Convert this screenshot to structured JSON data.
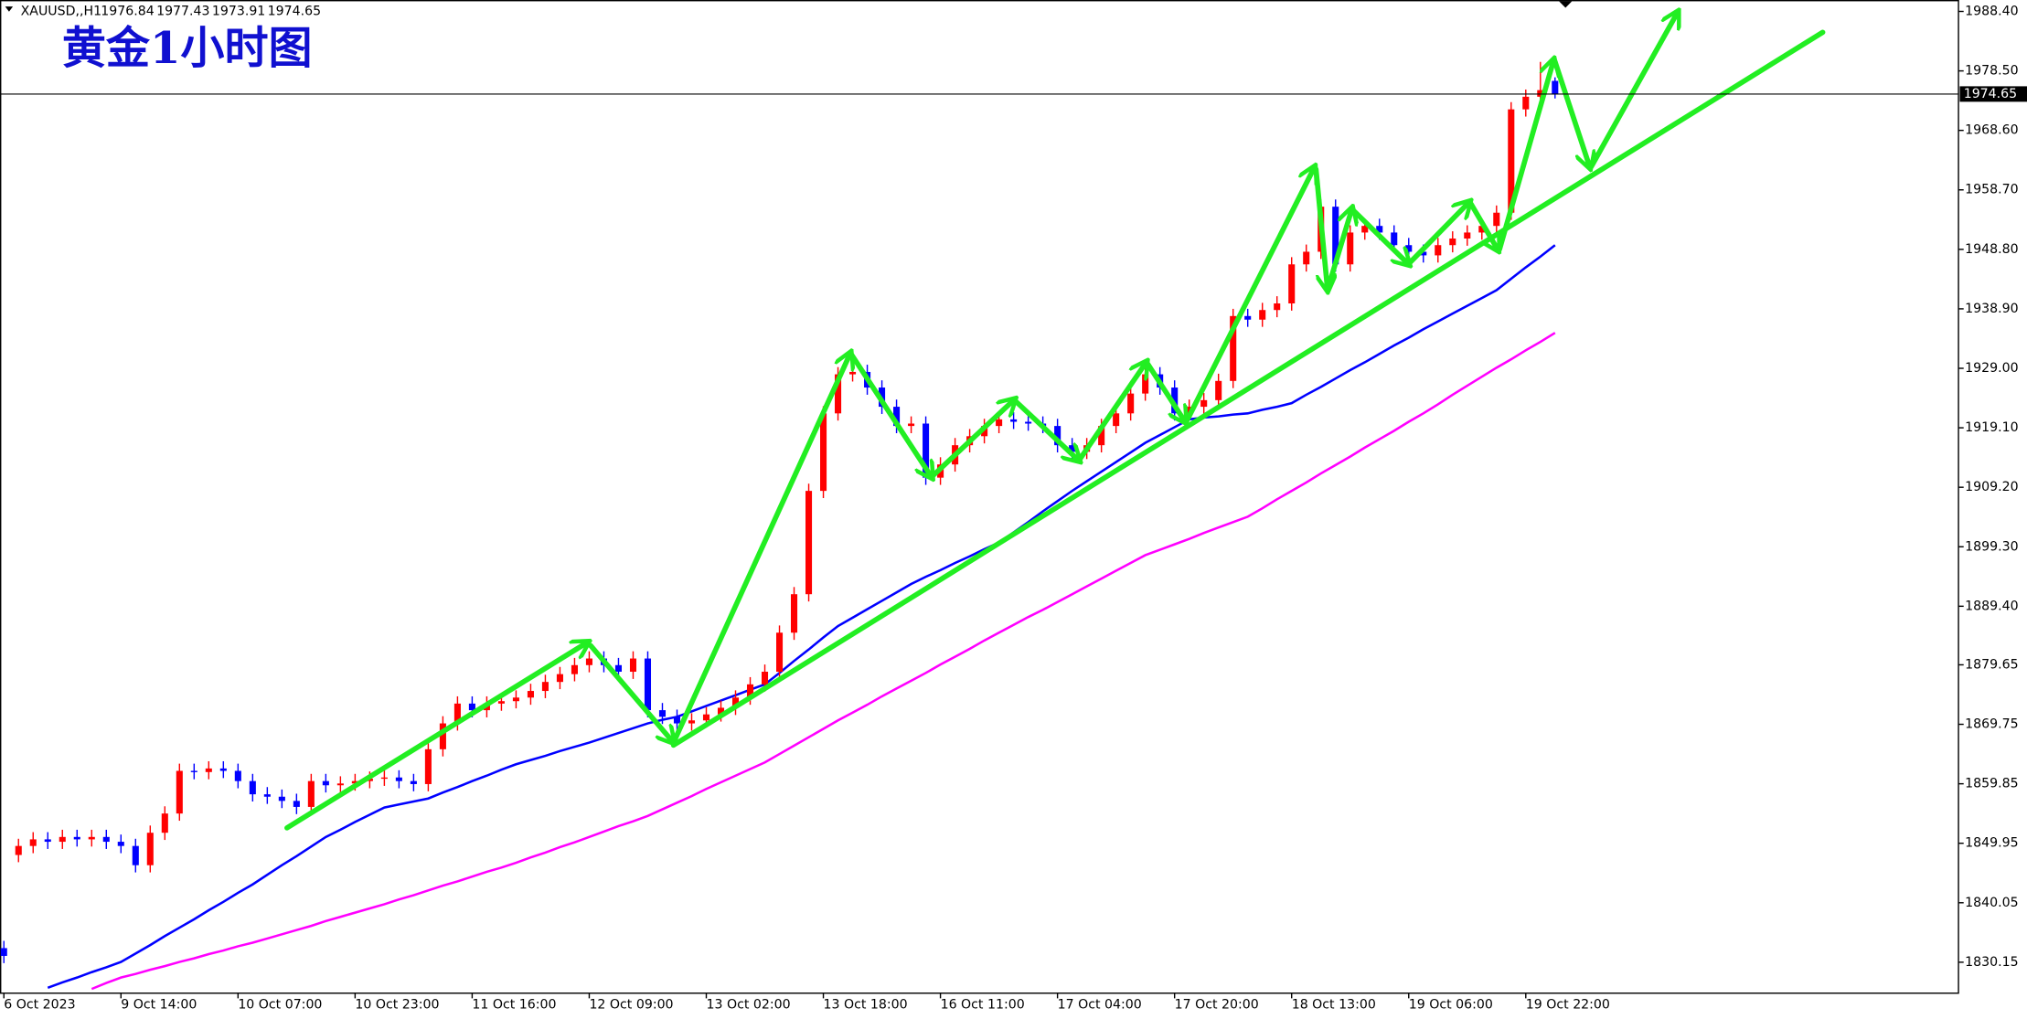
{
  "chart_data": {
    "type": "candlestick",
    "symbol": "XAUUSD,,H1",
    "title": "黄金1小时图",
    "categories": [
      "6 Oct 2023",
      null,
      null,
      null,
      null,
      null,
      null,
      null,
      "9 Oct 14:00",
      null,
      null,
      null,
      null,
      null,
      null,
      null,
      "10 Oct 07:00",
      null,
      null,
      null,
      null,
      null,
      null,
      null,
      "10 Oct 23:00",
      null,
      null,
      null,
      null,
      null,
      null,
      null,
      "11 Oct 16:00",
      null,
      null,
      null,
      null,
      null,
      null,
      null,
      "12 Oct 09:00",
      null,
      null,
      null,
      null,
      null,
      null,
      null,
      "13 Oct 02:00",
      null,
      null,
      null,
      null,
      null,
      null,
      null,
      "13 Oct 18:00",
      null,
      null,
      null,
      null,
      null,
      null,
      null,
      "16 Oct 11:00",
      null,
      null,
      null,
      null,
      null,
      null,
      null,
      "17 Oct 04:00",
      null,
      null,
      null,
      null,
      null,
      null,
      null,
      "17 Oct 20:00",
      null,
      null,
      null,
      null,
      null,
      null,
      null,
      "18 Oct 13:00",
      null,
      null,
      null,
      null,
      null,
      null,
      null,
      "19 Oct 06:00",
      null,
      null,
      null,
      null,
      null,
      null,
      null,
      "19 Oct 22:00",
      null,
      null
    ],
    "open": [
      1832.5,
      1848.0,
      1849.5,
      1850.6,
      1850.2,
      1851.0,
      1850.6,
      1851.0,
      1850.2,
      1849.5,
      1846.3,
      1851.7,
      1854.9,
      1862.0,
      1861.8,
      1862.4,
      1862.0,
      1860.3,
      1858.1,
      1857.7,
      1857.0,
      1856.0,
      1860.3,
      1859.6,
      1859.9,
      1860.3,
      1860.7,
      1860.9,
      1860.3,
      1859.8,
      1865.6,
      1869.9,
      1873.2,
      1872.1,
      1873.2,
      1873.6,
      1874.2,
      1875.3,
      1876.8,
      1878.1,
      1879.6,
      1880.7,
      1879.6,
      1878.5,
      1880.7,
      1872.1,
      1871.0,
      1869.9,
      1870.4,
      1871.4,
      1872.5,
      1874.2,
      1876.4,
      1878.5,
      1885.0,
      1891.4,
      1908.6,
      1921.5,
      1928.0,
      1928.4,
      1925.8,
      1922.6,
      1919.4,
      1919.8,
      1910.8,
      1913.0,
      1916.2,
      1917.7,
      1919.4,
      1920.5,
      1920.1,
      1919.8,
      1919.4,
      1916.2,
      1915.1,
      1916.2,
      1919.4,
      1921.5,
      1924.8,
      1928.0,
      1925.8,
      1921.5,
      1922.6,
      1923.7,
      1926.9,
      1937.7,
      1937.1,
      1938.7,
      1939.8,
      1946.3,
      1948.4,
      1955.9,
      1946.3,
      1951.6,
      1952.7,
      1951.6,
      1949.5,
      1948.4,
      1947.8,
      1949.5,
      1950.6,
      1951.6,
      1952.7,
      1954.9,
      1972.1,
      1974.2,
      1976.84
    ],
    "high": [
      1833.7,
      1850.7,
      1851.8,
      1851.8,
      1852.2,
      1852.2,
      1852.2,
      1852.2,
      1851.4,
      1850.7,
      1852.9,
      1856.1,
      1863.2,
      1863.2,
      1863.6,
      1863.6,
      1863.2,
      1861.5,
      1859.3,
      1858.9,
      1858.2,
      1861.5,
      1861.5,
      1861.1,
      1861.5,
      1861.9,
      1862.1,
      1862.1,
      1861.5,
      1866.8,
      1871.1,
      1874.4,
      1874.4,
      1874.4,
      1874.8,
      1875.4,
      1876.5,
      1878.0,
      1879.3,
      1880.8,
      1881.9,
      1881.9,
      1880.8,
      1881.9,
      1881.9,
      1873.3,
      1872.2,
      1871.6,
      1872.6,
      1873.7,
      1875.4,
      1877.6,
      1879.7,
      1886.2,
      1892.6,
      1909.8,
      1922.7,
      1929.2,
      1929.6,
      1929.6,
      1927.0,
      1923.8,
      1921.0,
      1921.0,
      1914.2,
      1917.4,
      1918.9,
      1920.6,
      1921.7,
      1921.7,
      1921.3,
      1921.0,
      1920.6,
      1917.4,
      1917.4,
      1920.6,
      1922.7,
      1926.0,
      1929.2,
      1929.2,
      1927.0,
      1923.8,
      1924.9,
      1928.1,
      1938.9,
      1938.9,
      1939.9,
      1941.0,
      1947.5,
      1949.6,
      1957.1,
      1957.1,
      1952.8,
      1953.9,
      1953.9,
      1952.8,
      1950.7,
      1949.6,
      1950.7,
      1951.8,
      1952.8,
      1953.9,
      1956.1,
      1973.3,
      1975.4,
      1980.0,
      1977.43
    ],
    "low": [
      1830.0,
      1846.8,
      1848.3,
      1849.0,
      1849.0,
      1849.4,
      1849.4,
      1849.0,
      1848.3,
      1845.1,
      1845.1,
      1850.5,
      1853.7,
      1860.6,
      1860.6,
      1860.8,
      1859.1,
      1856.9,
      1856.5,
      1855.8,
      1854.8,
      1854.8,
      1858.4,
      1858.4,
      1858.7,
      1859.1,
      1859.5,
      1859.1,
      1858.6,
      1858.6,
      1864.4,
      1868.7,
      1870.9,
      1870.9,
      1872.0,
      1872.4,
      1873.0,
      1874.1,
      1875.6,
      1876.9,
      1878.4,
      1878.4,
      1877.3,
      1877.3,
      1870.9,
      1869.8,
      1868.7,
      1868.7,
      1869.2,
      1870.2,
      1871.3,
      1873.0,
      1875.2,
      1877.3,
      1883.8,
      1890.2,
      1907.4,
      1920.3,
      1926.8,
      1924.6,
      1921.4,
      1918.2,
      1918.2,
      1909.6,
      1909.6,
      1911.8,
      1915.0,
      1916.5,
      1918.2,
      1918.9,
      1918.6,
      1918.2,
      1915.0,
      1913.9,
      1913.9,
      1915.0,
      1918.2,
      1920.3,
      1923.6,
      1924.6,
      1920.3,
      1920.3,
      1921.4,
      1922.5,
      1925.7,
      1935.9,
      1935.9,
      1937.5,
      1938.6,
      1945.1,
      1947.2,
      1945.1,
      1945.1,
      1950.4,
      1950.4,
      1948.3,
      1947.2,
      1946.6,
      1946.6,
      1948.3,
      1949.4,
      1950.4,
      1951.5,
      1953.7,
      1970.9,
      1973.0,
      1973.91
    ],
    "close": [
      1831.2,
      1849.5,
      1850.6,
      1850.2,
      1851.0,
      1850.6,
      1851.0,
      1850.2,
      1849.5,
      1846.3,
      1851.7,
      1854.9,
      1862.0,
      1861.8,
      1862.4,
      1862.0,
      1860.3,
      1858.1,
      1857.7,
      1857.0,
      1856.0,
      1860.3,
      1859.6,
      1859.9,
      1860.3,
      1860.7,
      1860.9,
      1860.3,
      1859.8,
      1865.6,
      1869.9,
      1873.2,
      1872.1,
      1873.2,
      1873.6,
      1874.2,
      1875.3,
      1876.8,
      1878.1,
      1879.6,
      1880.7,
      1879.6,
      1878.5,
      1880.7,
      1872.1,
      1871.0,
      1869.9,
      1870.4,
      1871.4,
      1872.5,
      1874.2,
      1876.4,
      1878.5,
      1885.0,
      1891.4,
      1908.6,
      1921.5,
      1928.0,
      1928.4,
      1925.8,
      1922.6,
      1919.4,
      1919.8,
      1910.8,
      1913.0,
      1916.2,
      1917.7,
      1919.4,
      1920.5,
      1920.1,
      1919.8,
      1919.4,
      1916.2,
      1915.1,
      1916.2,
      1919.4,
      1921.5,
      1924.8,
      1928.0,
      1925.8,
      1921.5,
      1922.6,
      1923.7,
      1926.9,
      1937.7,
      1937.1,
      1938.7,
      1939.8,
      1946.3,
      1948.4,
      1955.9,
      1946.3,
      1951.6,
      1952.7,
      1951.6,
      1949.5,
      1948.4,
      1947.8,
      1949.5,
      1950.6,
      1951.6,
      1952.7,
      1954.9,
      1972.1,
      1974.2,
      1975.3,
      1974.65
    ],
    "up_color": "#ff0000",
    "down_color": "#0000ff",
    "lines": [
      {
        "color": "#0000ff",
        "values": [
          null,
          null,
          null,
          1825.9,
          1826.8,
          1827.6,
          1828.5,
          1829.3,
          1830.2,
          1831.6,
          1833.0,
          1834.5,
          1835.9,
          1837.3,
          1838.8,
          1840.2,
          1841.7,
          1843.1,
          1844.7,
          1846.3,
          1847.8,
          1849.4,
          1851.0,
          1852.2,
          1853.5,
          1854.7,
          1855.9,
          1856.4,
          1856.9,
          1857.4,
          1858.4,
          1859.3,
          1860.3,
          1861.2,
          1862.2,
          1863.1,
          1863.8,
          1864.5,
          1865.3,
          1866.0,
          1866.7,
          1867.5,
          1868.3,
          1869.1,
          1869.9,
          1870.5,
          1871.0,
          1871.9,
          1872.8,
          1873.7,
          1874.6,
          1875.5,
          1876.4,
          1878.3,
          1880.3,
          1882.2,
          1884.2,
          1886.1,
          1887.5,
          1888.9,
          1890.3,
          1891.7,
          1893.1,
          1894.3,
          1895.4,
          1896.6,
          1897.7,
          1898.9,
          1900.0,
          1901.7,
          1903.4,
          1905.2,
          1906.9,
          1908.6,
          1910.2,
          1911.8,
          1913.4,
          1915.0,
          1916.6,
          1917.9,
          1919.2,
          1920.5,
          1920.8,
          1921.0,
          1921.3,
          1921.5,
          1922.1,
          1922.6,
          1923.2,
          1924.6,
          1925.9,
          1927.3,
          1928.7,
          1930.0,
          1931.4,
          1932.8,
          1934.1,
          1935.5,
          1936.8,
          1938.1,
          1939.4,
          1940.7,
          1942.0,
          1943.9,
          1945.8,
          1947.6,
          1949.5
        ]
      },
      {
        "color": "#ff00ff",
        "values": [
          null,
          null,
          null,
          null,
          null,
          null,
          1825.7,
          1826.7,
          1827.6,
          1828.2,
          1828.9,
          1829.5,
          1830.2,
          1830.8,
          1831.5,
          1832.1,
          1832.8,
          1833.4,
          1834.1,
          1834.8,
          1835.5,
          1836.2,
          1837.0,
          1837.7,
          1838.4,
          1839.1,
          1839.8,
          1840.6,
          1841.3,
          1842.1,
          1842.9,
          1843.6,
          1844.4,
          1845.2,
          1845.9,
          1846.7,
          1847.6,
          1848.4,
          1849.3,
          1850.1,
          1851.0,
          1851.9,
          1852.8,
          1853.6,
          1854.5,
          1855.6,
          1856.7,
          1857.8,
          1859.0,
          1860.1,
          1861.2,
          1862.3,
          1863.4,
          1864.8,
          1866.2,
          1867.6,
          1869.0,
          1870.4,
          1871.7,
          1873.0,
          1874.4,
          1875.7,
          1877.0,
          1878.3,
          1879.7,
          1881.0,
          1882.3,
          1883.7,
          1885.0,
          1886.3,
          1887.6,
          1888.8,
          1890.1,
          1891.4,
          1892.7,
          1894.0,
          1895.3,
          1896.6,
          1897.9,
          1898.8,
          1899.7,
          1900.6,
          1901.6,
          1902.5,
          1903.4,
          1904.3,
          1905.7,
          1907.2,
          1908.6,
          1910.0,
          1911.5,
          1912.9,
          1914.3,
          1915.8,
          1917.2,
          1918.6,
          1920.1,
          1921.5,
          1923.0,
          1924.6,
          1926.1,
          1927.6,
          1929.1,
          1930.5,
          1932.0,
          1933.4,
          1934.9
        ]
      }
    ],
    "ylim": [
      1825.0,
      1990.3
    ],
    "yticks": [
      {
        "value": 1988.4,
        "label": "1988.40"
      },
      {
        "value": 1978.5,
        "label": "1978.50"
      },
      {
        "value": 1968.6,
        "label": "1968.60"
      },
      {
        "value": 1958.7,
        "label": "1958.70"
      },
      {
        "value": 1948.8,
        "label": "1948.80"
      },
      {
        "value": 1938.9,
        "label": "1938.90"
      },
      {
        "value": 1929,
        "label": "1929.00"
      },
      {
        "value": 1919.1,
        "label": "1919.10"
      },
      {
        "value": 1909.2,
        "label": "1909.20"
      },
      {
        "value": 1899.3,
        "label": "1899.30"
      },
      {
        "value": 1889.4,
        "label": "1889.40"
      },
      1879.65,
      1869.75,
      1859.85,
      1849.95,
      1840.05,
      1830.15
    ],
    "grid": false
  }
}
